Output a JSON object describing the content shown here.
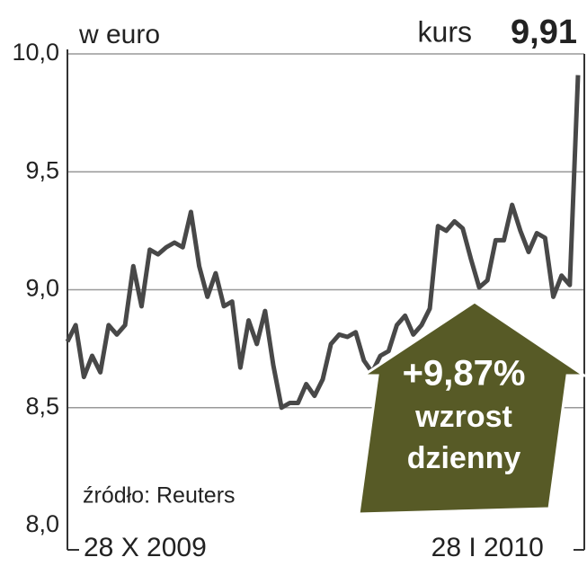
{
  "chart_data": {
    "type": "line",
    "title": "w euro",
    "price_label": "kurs",
    "price_value": "9,91",
    "source": "źródło: Reuters",
    "annotation": [
      "+9,87%",
      "wzrost",
      "dzienny"
    ],
    "categories": [
      "28 X 2009",
      null,
      null,
      null,
      null,
      null,
      null,
      null,
      null,
      null,
      null,
      null,
      null,
      null,
      null,
      null,
      null,
      null,
      null,
      null,
      null,
      null,
      null,
      null,
      null,
      null,
      null,
      null,
      null,
      null,
      null,
      null,
      null,
      null,
      null,
      null,
      null,
      null,
      null,
      null,
      null,
      null,
      null,
      null,
      null,
      null,
      null,
      null,
      null,
      null,
      null,
      "28 I 2010",
      null,
      null,
      null,
      null,
      null,
      null,
      null,
      null,
      null,
      null,
      null
    ],
    "series": [
      {
        "name": "kurs",
        "color": "#484848",
        "values": [
          8.78,
          8.85,
          8.63,
          8.72,
          8.65,
          8.85,
          8.81,
          8.85,
          9.1,
          8.93,
          9.17,
          9.15,
          9.18,
          9.2,
          9.18,
          9.33,
          9.1,
          8.97,
          9.07,
          8.93,
          8.95,
          8.67,
          8.87,
          8.77,
          8.91,
          8.68,
          8.5,
          8.52,
          8.52,
          8.6,
          8.55,
          8.62,
          8.77,
          8.81,
          8.8,
          8.82,
          8.7,
          8.65,
          8.72,
          8.74,
          8.85,
          8.89,
          8.81,
          8.85,
          8.92,
          9.27,
          9.25,
          9.29,
          9.26,
          9.13,
          9.01,
          9.04,
          9.21,
          9.21,
          9.36,
          9.25,
          9.16,
          9.24,
          9.22,
          8.97,
          9.06,
          9.02,
          9.91
        ]
      }
    ],
    "ylim": [
      8,
      10
    ],
    "yticks": [
      {
        "value": 8,
        "label": "8,0"
      },
      {
        "value": 8.5,
        "label": "8,5"
      },
      {
        "value": 9,
        "label": "9,0"
      },
      {
        "value": 9.5,
        "label": "9,5"
      },
      {
        "value": 10,
        "label": "10,0"
      }
    ],
    "grid": true,
    "annotation_color": "#575a26"
  }
}
